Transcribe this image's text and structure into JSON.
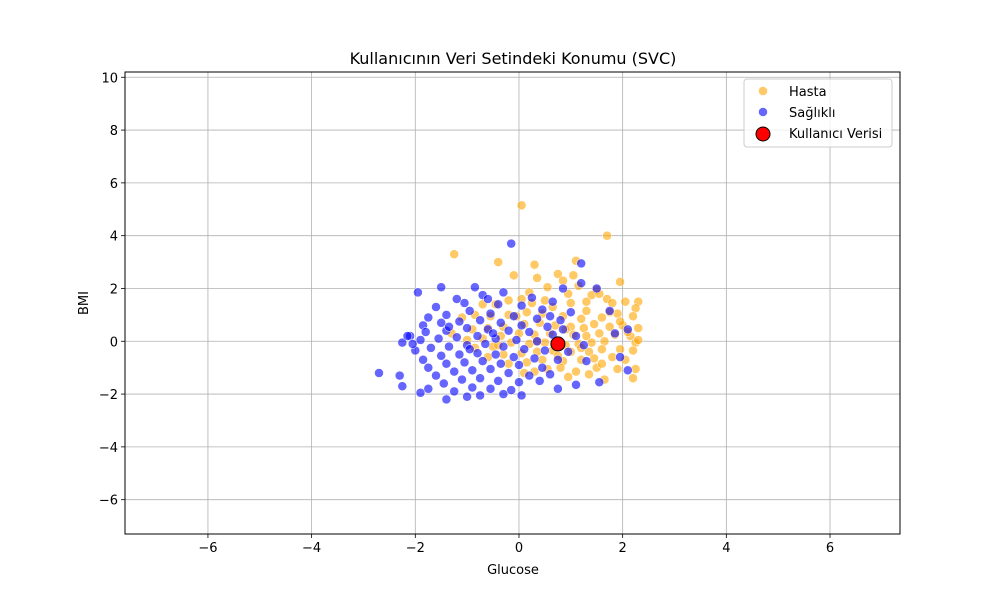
{
  "chart_data": {
    "type": "scatter",
    "title": "Kullanıcının Veri Setindeki Konumu (SVC)",
    "xlabel": "Glucose",
    "ylabel": "BMI",
    "xlim": [
      -7.6,
      7.35
    ],
    "ylim": [
      -7.3,
      10.2
    ],
    "xticks": [
      -6,
      -4,
      -2,
      0,
      2,
      4,
      6
    ],
    "yticks": [
      -6,
      -4,
      -2,
      0,
      2,
      4,
      6,
      8,
      10
    ],
    "xtick_labels": [
      "−6",
      "−4",
      "−2",
      "0",
      "2",
      "4",
      "6"
    ],
    "ytick_labels": [
      "−6",
      "−4",
      "−2",
      "0",
      "2",
      "4",
      "6",
      "8",
      "10"
    ],
    "grid": true,
    "legend_position": "top-right",
    "series": [
      {
        "name": "Hasta",
        "color": "#FFA500",
        "points": [
          [
            0.05,
            5.15
          ],
          [
            1.7,
            4.0
          ],
          [
            -1.25,
            3.3
          ],
          [
            1.1,
            3.05
          ],
          [
            -0.4,
            3.0
          ],
          [
            0.3,
            2.9
          ],
          [
            1.05,
            2.5
          ],
          [
            0.75,
            2.55
          ],
          [
            0.35,
            2.4
          ],
          [
            1.95,
            2.25
          ],
          [
            1.5,
            1.95
          ],
          [
            2.3,
            1.5
          ],
          [
            1.4,
            1.75
          ],
          [
            1.55,
            1.8
          ],
          [
            1.7,
            1.6
          ],
          [
            2.25,
            1.25
          ],
          [
            1.8,
            1.45
          ],
          [
            1.3,
            1.5
          ],
          [
            1.0,
            1.45
          ],
          [
            0.5,
            1.55
          ],
          [
            0.25,
            1.45
          ],
          [
            0.05,
            1.6
          ],
          [
            -0.2,
            1.55
          ],
          [
            -0.45,
            1.4
          ],
          [
            -0.7,
            1.4
          ],
          [
            1.9,
            1.05
          ],
          [
            2.2,
            0.95
          ],
          [
            1.6,
            0.9
          ],
          [
            1.2,
            0.85
          ],
          [
            0.85,
            0.95
          ],
          [
            0.45,
            1.05
          ],
          [
            0.15,
            1.1
          ],
          [
            -0.2,
            1.0
          ],
          [
            -0.55,
            0.95
          ],
          [
            -0.85,
            1.0
          ],
          [
            -1.1,
            0.9
          ],
          [
            2.0,
            0.6
          ],
          [
            2.3,
            0.5
          ],
          [
            1.75,
            0.55
          ],
          [
            1.45,
            0.65
          ],
          [
            1.25,
            0.5
          ],
          [
            1.0,
            0.55
          ],
          [
            0.7,
            0.6
          ],
          [
            0.4,
            0.7
          ],
          [
            0.1,
            0.65
          ],
          [
            -0.3,
            0.55
          ],
          [
            -0.6,
            0.5
          ],
          [
            -0.9,
            0.45
          ],
          [
            -1.3,
            0.3
          ],
          [
            1.85,
            0.25
          ],
          [
            2.15,
            0.2
          ],
          [
            1.55,
            0.3
          ],
          [
            1.3,
            0.2
          ],
          [
            1.05,
            0.25
          ],
          [
            0.6,
            0.3
          ],
          [
            0.3,
            0.25
          ],
          [
            0.0,
            0.3
          ],
          [
            -0.35,
            0.2
          ],
          [
            -0.7,
            0.1
          ],
          [
            -1.0,
            0.05
          ],
          [
            1.65,
            0.0
          ],
          [
            2.25,
            -0.05
          ],
          [
            1.4,
            -0.05
          ],
          [
            1.15,
            -0.1
          ],
          [
            0.9,
            -0.15
          ],
          [
            0.5,
            -0.05
          ],
          [
            0.2,
            -0.1
          ],
          [
            -0.15,
            -0.05
          ],
          [
            -0.5,
            -0.2
          ],
          [
            -0.85,
            -0.25
          ],
          [
            1.95,
            -0.3
          ],
          [
            2.2,
            -0.35
          ],
          [
            1.6,
            -0.3
          ],
          [
            1.35,
            -0.4
          ],
          [
            1.0,
            -0.4
          ],
          [
            0.65,
            -0.35
          ],
          [
            0.35,
            -0.4
          ],
          [
            0.05,
            -0.45
          ],
          [
            -0.3,
            -0.5
          ],
          [
            -0.6,
            -0.6
          ],
          [
            1.8,
            -0.6
          ],
          [
            2.05,
            -0.7
          ],
          [
            1.45,
            -0.65
          ],
          [
            1.2,
            -0.7
          ],
          [
            0.85,
            -0.75
          ],
          [
            0.45,
            -0.7
          ],
          [
            0.15,
            -0.8
          ],
          [
            -0.2,
            -0.85
          ],
          [
            2.25,
            -1.05
          ],
          [
            1.9,
            -1.05
          ],
          [
            2.2,
            -1.4
          ],
          [
            1.65,
            -1.45
          ],
          [
            1.35,
            -1.25
          ],
          [
            1.1,
            -1.15
          ],
          [
            0.8,
            -1.0
          ],
          [
            0.55,
            -1.05
          ],
          [
            0.3,
            -1.15
          ],
          [
            0.95,
            -1.35
          ],
          [
            1.5,
            -1.0
          ],
          [
            0.1,
            -1.2
          ],
          [
            2.1,
            0.35
          ],
          [
            1.95,
            0.75
          ],
          [
            1.75,
            1.1
          ],
          [
            2.05,
            1.5
          ],
          [
            1.3,
            1.15
          ],
          [
            0.65,
            1.3
          ],
          [
            0.95,
            1.8
          ],
          [
            0.2,
            1.85
          ],
          [
            -0.1,
            2.5
          ],
          [
            0.55,
            2.05
          ],
          [
            1.15,
            2.1
          ],
          [
            0.85,
            2.3
          ],
          [
            2.3,
            0.05
          ],
          [
            1.2,
            -0.25
          ],
          [
            0.75,
            -0.55
          ],
          [
            -0.4,
            -0.15
          ],
          [
            -0.05,
            0.95
          ],
          [
            0.9,
            0.45
          ],
          [
            1.6,
            -0.85
          ],
          [
            0.35,
            0.0
          ]
        ]
      },
      {
        "name": "Sağlıklı",
        "color": "#0000FF",
        "points": [
          [
            -0.15,
            3.7
          ],
          [
            1.2,
            2.95
          ],
          [
            1.2,
            2.2
          ],
          [
            1.5,
            2.0
          ],
          [
            -1.5,
            2.05
          ],
          [
            -1.95,
            1.85
          ],
          [
            0.85,
            2.0
          ],
          [
            -0.85,
            2.05
          ],
          [
            -0.3,
            1.85
          ],
          [
            -1.2,
            1.6
          ],
          [
            -0.7,
            1.75
          ],
          [
            0.25,
            1.65
          ],
          [
            0.65,
            1.5
          ],
          [
            -1.6,
            1.3
          ],
          [
            -1.05,
            1.45
          ],
          [
            -0.4,
            1.4
          ],
          [
            0.05,
            1.35
          ],
          [
            0.45,
            1.2
          ],
          [
            1.0,
            1.1
          ],
          [
            1.75,
            1.15
          ],
          [
            -1.75,
            0.9
          ],
          [
            -1.4,
            1.0
          ],
          [
            -0.95,
            1.15
          ],
          [
            -0.55,
            1.05
          ],
          [
            -0.1,
            0.95
          ],
          [
            0.35,
            0.85
          ],
          [
            0.8,
            0.8
          ],
          [
            -1.85,
            0.6
          ],
          [
            -1.5,
            0.7
          ],
          [
            -1.15,
            0.75
          ],
          [
            -0.75,
            0.8
          ],
          [
            -0.35,
            0.7
          ],
          [
            0.05,
            0.6
          ],
          [
            0.55,
            0.55
          ],
          [
            -2.1,
            0.2
          ],
          [
            -1.8,
            0.35
          ],
          [
            -1.4,
            0.4
          ],
          [
            -1.0,
            0.5
          ],
          [
            -0.6,
            0.45
          ],
          [
            -0.2,
            0.4
          ],
          [
            0.2,
            0.35
          ],
          [
            0.65,
            0.25
          ],
          [
            1.1,
            0.2
          ],
          [
            1.85,
            0.3
          ],
          [
            2.1,
            0.45
          ],
          [
            -2.25,
            -0.05
          ],
          [
            -1.9,
            0.05
          ],
          [
            -1.55,
            0.1
          ],
          [
            -1.2,
            0.15
          ],
          [
            -0.8,
            0.2
          ],
          [
            -0.45,
            0.1
          ],
          [
            -0.05,
            0.05
          ],
          [
            0.35,
            0.0
          ],
          [
            0.8,
            -0.05
          ],
          [
            1.25,
            -0.15
          ],
          [
            -2.0,
            -0.35
          ],
          [
            -1.7,
            -0.25
          ],
          [
            -1.35,
            -0.2
          ],
          [
            -1.0,
            -0.15
          ],
          [
            -0.65,
            -0.1
          ],
          [
            -0.3,
            -0.2
          ],
          [
            0.1,
            -0.3
          ],
          [
            0.5,
            -0.35
          ],
          [
            0.95,
            -0.4
          ],
          [
            -1.85,
            -0.7
          ],
          [
            -1.5,
            -0.55
          ],
          [
            -1.15,
            -0.5
          ],
          [
            -0.8,
            -0.45
          ],
          [
            -0.45,
            -0.5
          ],
          [
            -0.1,
            -0.6
          ],
          [
            0.3,
            -0.65
          ],
          [
            0.75,
            -0.7
          ],
          [
            -1.75,
            -1.0
          ],
          [
            -1.4,
            -0.85
          ],
          [
            -1.05,
            -0.8
          ],
          [
            -0.7,
            -0.75
          ],
          [
            -0.35,
            -0.85
          ],
          [
            0.0,
            -0.9
          ],
          [
            0.45,
            -1.0
          ],
          [
            -1.6,
            -1.3
          ],
          [
            -1.25,
            -1.15
          ],
          [
            -0.9,
            -1.1
          ],
          [
            -0.55,
            -1.05
          ],
          [
            -0.2,
            -1.2
          ],
          [
            0.2,
            -1.3
          ],
          [
            0.6,
            -1.25
          ],
          [
            -1.45,
            -1.6
          ],
          [
            -1.1,
            -1.45
          ],
          [
            -0.75,
            -1.4
          ],
          [
            -0.4,
            -1.5
          ],
          [
            0.0,
            -1.55
          ],
          [
            0.4,
            -1.5
          ],
          [
            -1.25,
            -1.9
          ],
          [
            -0.9,
            -1.75
          ],
          [
            -0.55,
            -1.8
          ],
          [
            -0.15,
            -1.85
          ],
          [
            -1.0,
            -2.1
          ],
          [
            -0.75,
            -2.05
          ],
          [
            -0.3,
            -2.0
          ],
          [
            0.05,
            -2.05
          ],
          [
            -1.4,
            -2.2
          ],
          [
            -1.9,
            -1.95
          ],
          [
            -1.75,
            -1.8
          ],
          [
            -2.3,
            -1.3
          ],
          [
            -2.25,
            -1.7
          ],
          [
            -2.7,
            -1.2
          ],
          [
            -2.05,
            -0.1
          ],
          [
            -2.15,
            0.2
          ],
          [
            2.1,
            -1.1
          ],
          [
            1.55,
            -1.55
          ],
          [
            1.1,
            -1.65
          ],
          [
            0.75,
            -1.8
          ],
          [
            0.85,
            0.45
          ],
          [
            1.95,
            -0.6
          ],
          [
            1.3,
            -0.75
          ],
          [
            0.6,
            0.95
          ],
          [
            -0.6,
            1.6
          ],
          [
            -1.35,
            0.55
          ],
          [
            -0.95,
            -0.3
          ],
          [
            -0.5,
            0.3
          ]
        ]
      },
      {
        "name": "Kullanıcı Verisi",
        "color": "#FF0000",
        "points": [
          [
            0.75,
            -0.1
          ]
        ]
      }
    ]
  }
}
